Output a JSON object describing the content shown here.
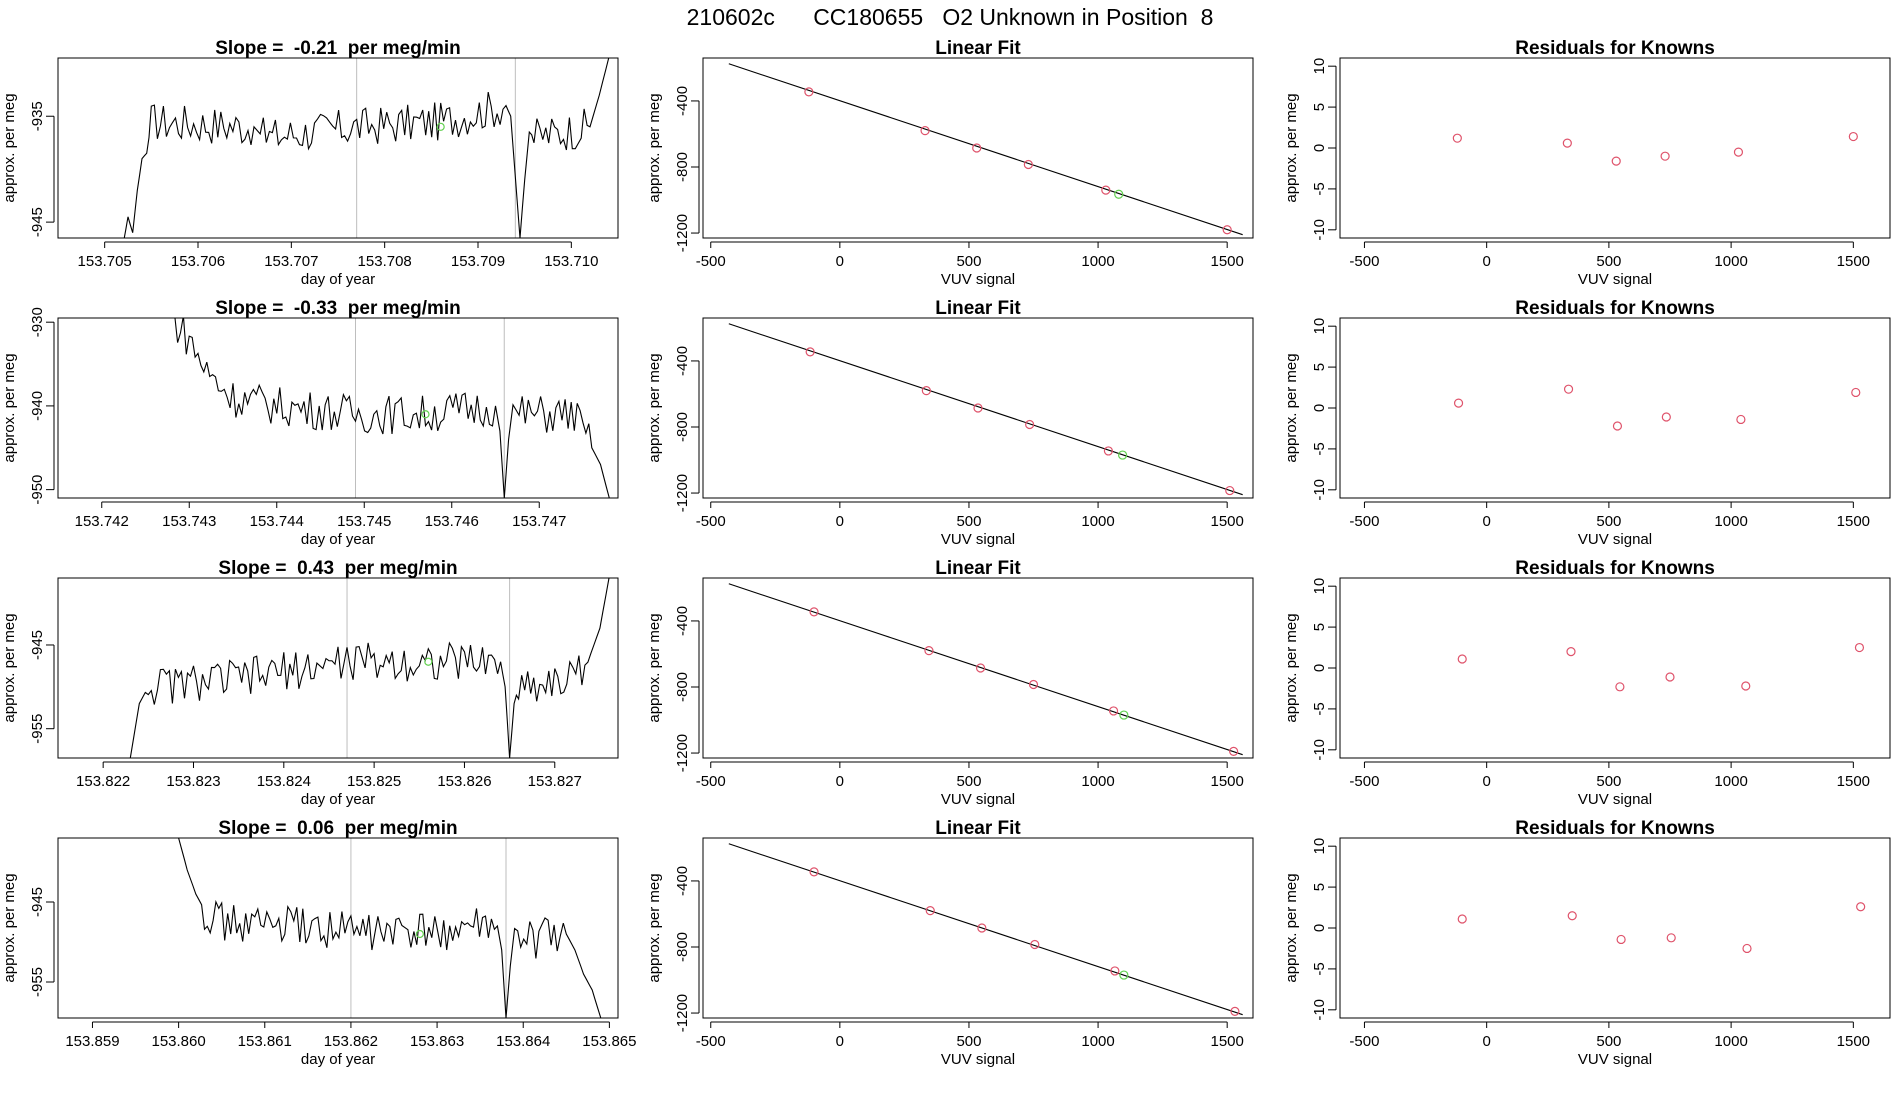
{
  "suptitle": "210602c      CC180655   O2 Unknown in Position  8",
  "colors": {
    "trace": "#000000",
    "guide": "#bebebe",
    "known_point": "#df536b",
    "unknown_point": "#61d04f",
    "axis": "#000000"
  },
  "chart_data": [
    {
      "type": "line",
      "panel": "time-series",
      "row": 1,
      "title": "Slope =  -0.21  per meg/min",
      "xlabel": "day of year",
      "ylabel": "approx. per meg",
      "xlim": [
        153.7045,
        153.7105
      ],
      "ylim": [
        -946.5,
        -929.5
      ],
      "xticks": [
        "153.705",
        "153.706",
        "153.707",
        "153.708",
        "153.709",
        "153.710"
      ],
      "xtick_values": [
        153.705,
        153.706,
        153.707,
        153.708,
        153.709,
        153.71
      ],
      "yticks": [
        "-945",
        "-935"
      ],
      "ytick_values": [
        -945,
        -935
      ],
      "vlines": [
        153.7077,
        153.7094
      ],
      "unknown_marker": {
        "x": 153.7086,
        "y": -936.0
      },
      "series": [
        {
          "values": [
            [
              153.7052,
              -947
            ],
            [
              153.70525,
              -944.5
            ],
            [
              153.7053,
              -946
            ],
            [
              153.70535,
              -942
            ],
            [
              153.7054,
              -939
            ],
            [
              153.70545,
              -938.5
            ],
            [
              153.7055,
              -935.5
            ],
            [
              153.7066,
              -936
            ],
            [
              153.7067,
              -937
            ],
            [
              153.7077,
              -936
            ],
            [
              153.7086,
              -935.5
            ],
            [
              153.7093,
              -934
            ],
            [
              153.70935,
              -935
            ],
            [
              153.70945,
              -946.5
            ],
            [
              153.7095,
              -941
            ],
            [
              153.70955,
              -936.5
            ],
            [
              153.7096,
              -937
            ],
            [
              153.7102,
              -936
            ],
            [
              153.7103,
              -933
            ],
            [
              153.7104,
              -929.5
            ]
          ]
        }
      ]
    },
    {
      "type": "scatter",
      "panel": "linear-fit",
      "row": 1,
      "title": "Linear Fit",
      "xlabel": "VUV signal",
      "ylabel": "approx. per meg",
      "xlim": [
        -530,
        1600
      ],
      "ylim": [
        -1230,
        -140
      ],
      "xticks": [
        "-500",
        "0",
        "500",
        "1000",
        "1500"
      ],
      "xtick_values": [
        -500,
        0,
        500,
        1000,
        1500
      ],
      "yticks": [
        "-400",
        "-800",
        "-1200"
      ],
      "ytick_values": [
        -400,
        -800,
        -1200
      ],
      "fit_line": [
        [
          -430,
          -175
        ],
        [
          1560,
          -1210
        ]
      ],
      "knowns": [
        [
          -120,
          -345
        ],
        [
          330,
          -580
        ],
        [
          530,
          -685
        ],
        [
          730,
          -785
        ],
        [
          1030,
          -940
        ],
        [
          1500,
          -1180
        ]
      ],
      "unknown": [
        1080,
        -965
      ]
    },
    {
      "type": "scatter",
      "panel": "residuals",
      "row": 1,
      "title": "Residuals for Knowns",
      "xlabel": "VUV signal",
      "ylabel": "approx. per meg",
      "xlim": [
        -600,
        1650
      ],
      "ylim": [
        -11,
        11
      ],
      "xticks": [
        "-500",
        "0",
        "500",
        "1000",
        "1500"
      ],
      "xtick_values": [
        -500,
        0,
        500,
        1000,
        1500
      ],
      "yticks": [
        "-10",
        "-5",
        "0",
        "5",
        "10"
      ],
      "ytick_values": [
        -10,
        -5,
        0,
        5,
        10
      ],
      "points": [
        [
          -120,
          1.2
        ],
        [
          330,
          0.6
        ],
        [
          530,
          -1.6
        ],
        [
          730,
          -1.0
        ],
        [
          1030,
          -0.5
        ],
        [
          1500,
          1.4
        ]
      ]
    },
    {
      "type": "line",
      "panel": "time-series",
      "row": 2,
      "title": "Slope =  -0.33  per meg/min",
      "xlabel": "day of year",
      "ylabel": "approx. per meg",
      "xlim": [
        153.7415,
        153.7479
      ],
      "ylim": [
        -951,
        -929.5
      ],
      "xticks": [
        "153.742",
        "153.743",
        "153.744",
        "153.745",
        "153.746",
        "153.747"
      ],
      "xtick_values": [
        153.742,
        153.743,
        153.744,
        153.745,
        153.746,
        153.747
      ],
      "yticks": [
        "-950",
        "-940",
        "-930"
      ],
      "ytick_values": [
        -950,
        -940,
        -930
      ],
      "vlines": [
        153.7449,
        153.7466
      ],
      "unknown_marker": {
        "x": 153.7457,
        "y": -941.0
      },
      "series": [
        {
          "values": [
            [
              153.7428,
              -929.5
            ],
            [
              153.743,
              -932
            ],
            [
              153.7432,
              -936
            ],
            [
              153.7435,
              -939
            ],
            [
              153.744,
              -940
            ],
            [
              153.7449,
              -941
            ],
            [
              153.7457,
              -941
            ],
            [
              153.7465,
              -940
            ],
            [
              153.74655,
              -943
            ],
            [
              153.7466,
              -951
            ],
            [
              153.74665,
              -944
            ],
            [
              153.7467,
              -941
            ],
            [
              153.7474,
              -941
            ],
            [
              153.7476,
              -945
            ],
            [
              153.7477,
              -947
            ],
            [
              153.7478,
              -951
            ]
          ]
        }
      ]
    },
    {
      "type": "scatter",
      "panel": "linear-fit",
      "row": 2,
      "title": "Linear Fit",
      "xlabel": "VUV signal",
      "ylabel": "approx. per meg",
      "xlim": [
        -530,
        1600
      ],
      "ylim": [
        -1230,
        -140
      ],
      "xticks": [
        "-500",
        "0",
        "500",
        "1000",
        "1500"
      ],
      "xtick_values": [
        -500,
        0,
        500,
        1000,
        1500
      ],
      "yticks": [
        "-400",
        "-800",
        "-1200"
      ],
      "ytick_values": [
        -400,
        -800,
        -1200
      ],
      "fit_line": [
        [
          -430,
          -175
        ],
        [
          1560,
          -1210
        ]
      ],
      "knowns": [
        [
          -115,
          -345
        ],
        [
          335,
          -580
        ],
        [
          535,
          -685
        ],
        [
          735,
          -785
        ],
        [
          1040,
          -945
        ],
        [
          1510,
          -1185
        ]
      ],
      "unknown": [
        1095,
        -970
      ]
    },
    {
      "type": "scatter",
      "panel": "residuals",
      "row": 2,
      "title": "Residuals for Knowns",
      "xlabel": "VUV signal",
      "ylabel": "approx. per meg",
      "xlim": [
        -600,
        1650
      ],
      "ylim": [
        -11,
        11
      ],
      "xticks": [
        "-500",
        "0",
        "500",
        "1000",
        "1500"
      ],
      "xtick_values": [
        -500,
        0,
        500,
        1000,
        1500
      ],
      "yticks": [
        "-10",
        "-5",
        "0",
        "5",
        "10"
      ],
      "ytick_values": [
        -10,
        -5,
        0,
        5,
        10
      ],
      "points": [
        [
          -115,
          0.6
        ],
        [
          335,
          2.3
        ],
        [
          535,
          -2.2
        ],
        [
          735,
          -1.1
        ],
        [
          1040,
          -1.4
        ],
        [
          1510,
          1.9
        ]
      ]
    },
    {
      "type": "line",
      "panel": "time-series",
      "row": 3,
      "title": "Slope =  0.43  per meg/min",
      "xlabel": "day of year",
      "ylabel": "approx. per meg",
      "xlim": [
        153.8215,
        153.8277
      ],
      "ylim": [
        -958.5,
        -937
      ],
      "xticks": [
        "153.822",
        "153.823",
        "153.824",
        "153.825",
        "153.826",
        "153.827"
      ],
      "xtick_values": [
        153.822,
        153.823,
        153.824,
        153.825,
        153.826,
        153.827
      ],
      "yticks": [
        "-955",
        "-945"
      ],
      "ytick_values": [
        -955,
        -945
      ],
      "vlines": [
        153.8247,
        153.8265
      ],
      "unknown_marker": {
        "x": 153.8256,
        "y": -947.0
      },
      "series": [
        {
          "values": [
            [
              153.8223,
              -958.5
            ],
            [
              153.8224,
              -952
            ],
            [
              153.8225,
              -950
            ],
            [
              153.8235,
              -949
            ],
            [
              153.8247,
              -947
            ],
            [
              153.8256,
              -947
            ],
            [
              153.8264,
              -947
            ],
            [
              153.82645,
              -950
            ],
            [
              153.8265,
              -958.5
            ],
            [
              153.82655,
              -952
            ],
            [
              153.8266,
              -950
            ],
            [
              153.8272,
              -949
            ],
            [
              153.8274,
              -946
            ],
            [
              153.8275,
              -943
            ],
            [
              153.8276,
              -937
            ]
          ]
        }
      ]
    },
    {
      "type": "scatter",
      "panel": "linear-fit",
      "row": 3,
      "title": "Linear Fit",
      "xlabel": "VUV signal",
      "ylabel": "approx. per meg",
      "xlim": [
        -530,
        1600
      ],
      "ylim": [
        -1230,
        -140
      ],
      "xticks": [
        "-500",
        "0",
        "500",
        "1000",
        "1500"
      ],
      "xtick_values": [
        -500,
        0,
        500,
        1000,
        1500
      ],
      "yticks": [
        "-400",
        "-800",
        "-1200"
      ],
      "ytick_values": [
        -400,
        -800,
        -1200
      ],
      "fit_line": [
        [
          -430,
          -175
        ],
        [
          1560,
          -1210
        ]
      ],
      "knowns": [
        [
          -100,
          -345
        ],
        [
          345,
          -580
        ],
        [
          545,
          -685
        ],
        [
          750,
          -785
        ],
        [
          1060,
          -945
        ],
        [
          1525,
          -1190
        ]
      ],
      "unknown": [
        1100,
        -970
      ]
    },
    {
      "type": "scatter",
      "panel": "residuals",
      "row": 3,
      "title": "Residuals for Knowns",
      "xlabel": "VUV signal",
      "ylabel": "approx. per meg",
      "xlim": [
        -600,
        1650
      ],
      "ylim": [
        -11,
        11
      ],
      "xticks": [
        "-500",
        "0",
        "500",
        "1000",
        "1500"
      ],
      "xtick_values": [
        -500,
        0,
        500,
        1000,
        1500
      ],
      "yticks": [
        "-10",
        "-5",
        "0",
        "5",
        "10"
      ],
      "ytick_values": [
        -10,
        -5,
        0,
        5,
        10
      ],
      "points": [
        [
          -100,
          1.1
        ],
        [
          345,
          2.0
        ],
        [
          545,
          -2.3
        ],
        [
          750,
          -1.1
        ],
        [
          1060,
          -2.2
        ],
        [
          1525,
          2.5
        ]
      ]
    },
    {
      "type": "line",
      "panel": "time-series",
      "row": 4,
      "title": "Slope =  0.06  per meg/min",
      "xlabel": "day of year",
      "ylabel": "approx. per meg",
      "xlim": [
        153.8586,
        153.8651
      ],
      "ylim": [
        -959.5,
        -937
      ],
      "xticks": [
        "153.859",
        "153.860",
        "153.861",
        "153.862",
        "153.863",
        "153.864",
        "153.865"
      ],
      "xtick_values": [
        153.859,
        153.86,
        153.861,
        153.862,
        153.863,
        153.864,
        153.865
      ],
      "yticks": [
        "-955",
        "-945"
      ],
      "ytick_values": [
        -955,
        -945
      ],
      "vlines": [
        153.862,
        153.8638
      ],
      "unknown_marker": {
        "x": 153.8628,
        "y": -949.0
      },
      "series": [
        {
          "values": [
            [
              153.86,
              -937
            ],
            [
              153.8601,
              -941
            ],
            [
              153.8602,
              -944
            ],
            [
              153.8603,
              -946
            ],
            [
              153.8605,
              -947.5
            ],
            [
              153.862,
              -948.5
            ],
            [
              153.8628,
              -949
            ],
            [
              153.8637,
              -948
            ],
            [
              153.86375,
              -951
            ],
            [
              153.8638,
              -959.5
            ],
            [
              153.86385,
              -953
            ],
            [
              153.8639,
              -950
            ],
            [
              153.8645,
              -949
            ],
            [
              153.8646,
              -951
            ],
            [
              153.8647,
              -954
            ],
            [
              153.8648,
              -956
            ],
            [
              153.8649,
              -959.5
            ]
          ]
        }
      ]
    },
    {
      "type": "scatter",
      "panel": "linear-fit",
      "row": 4,
      "title": "Linear Fit",
      "xlabel": "VUV signal",
      "ylabel": "approx. per meg",
      "xlim": [
        -530,
        1600
      ],
      "ylim": [
        -1230,
        -140
      ],
      "xticks": [
        "-500",
        "0",
        "500",
        "1000",
        "1500"
      ],
      "xtick_values": [
        -500,
        0,
        500,
        1000,
        1500
      ],
      "yticks": [
        "-400",
        "-800",
        "-1200"
      ],
      "ytick_values": [
        -400,
        -800,
        -1200
      ],
      "fit_line": [
        [
          -430,
          -175
        ],
        [
          1560,
          -1210
        ]
      ],
      "knowns": [
        [
          -100,
          -345
        ],
        [
          350,
          -580
        ],
        [
          550,
          -685
        ],
        [
          755,
          -785
        ],
        [
          1065,
          -945
        ],
        [
          1530,
          -1190
        ]
      ],
      "unknown": [
        1100,
        -970
      ]
    },
    {
      "type": "scatter",
      "panel": "residuals",
      "row": 4,
      "title": "Residuals for Knowns",
      "xlabel": "VUV signal",
      "ylabel": "approx. per meg",
      "xlim": [
        -600,
        1650
      ],
      "ylim": [
        -11,
        11
      ],
      "xticks": [
        "-500",
        "0",
        "500",
        "1000",
        "1500"
      ],
      "xtick_values": [
        -500,
        0,
        500,
        1000,
        1500
      ],
      "yticks": [
        "-10",
        "-5",
        "0",
        "5",
        "10"
      ],
      "ytick_values": [
        -10,
        -5,
        0,
        5,
        10
      ],
      "points": [
        [
          -100,
          1.1
        ],
        [
          350,
          1.5
        ],
        [
          550,
          -1.4
        ],
        [
          755,
          -1.2
        ],
        [
          1065,
          -2.5
        ],
        [
          1530,
          2.6
        ]
      ]
    }
  ]
}
